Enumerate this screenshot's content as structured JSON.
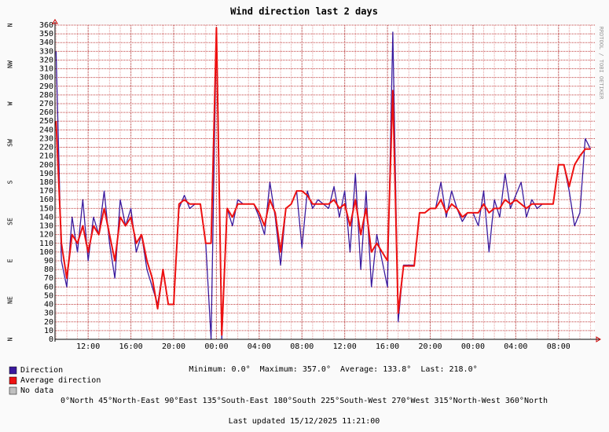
{
  "chart_data": {
    "type": "line",
    "title": "Wind direction last 2 days",
    "watermark": "RRDTOOL / TOBI OETIKER",
    "x": [
      9,
      9.5,
      10,
      10.5,
      11,
      11.5,
      12,
      12.5,
      13,
      13.5,
      14,
      14.5,
      15,
      15.5,
      16,
      16.5,
      17,
      17.5,
      18,
      18.5,
      19,
      19.5,
      20,
      20.5,
      21,
      21.5,
      22,
      22.5,
      23,
      23.5,
      24,
      24.5,
      25,
      25.5,
      26,
      26.5,
      27,
      27.5,
      28,
      28.5,
      29,
      29.5,
      30,
      30.5,
      31,
      31.5,
      32,
      32.5,
      33,
      33.5,
      34,
      34.5,
      35,
      35.5,
      36,
      36.5,
      37,
      37.5,
      38,
      38.5,
      39,
      39.5,
      40,
      40.5,
      41,
      41.5,
      42,
      42.5,
      43,
      43.5,
      44,
      44.5,
      45,
      45.5,
      46,
      46.5,
      47,
      47.5,
      48,
      48.5,
      49,
      49.5,
      50,
      50.5,
      51,
      51.5,
      52,
      52.5,
      53,
      53.5,
      54,
      54.5,
      55,
      55.5,
      56,
      56.5,
      57,
      57.5,
      58,
      58.5,
      59
    ],
    "series": [
      {
        "name": "Direction",
        "color": "#3a1a9e",
        "values": [
          330,
          90,
          60,
          140,
          100,
          160,
          90,
          140,
          120,
          170,
          110,
          70,
          160,
          130,
          150,
          100,
          120,
          80,
          60,
          40,
          80,
          40,
          40,
          150,
          165,
          150,
          155,
          155,
          110,
          0,
          357,
          0,
          150,
          130,
          160,
          155,
          155,
          155,
          140,
          120,
          180,
          140,
          85,
          150,
          155,
          170,
          105,
          170,
          150,
          160,
          155,
          150,
          175,
          140,
          170,
          100,
          190,
          80,
          170,
          60,
          120,
          90,
          60,
          352,
          20,
          85,
          85,
          85,
          145,
          145,
          150,
          150,
          180,
          140,
          170,
          150,
          135,
          145,
          145,
          130,
          170,
          100,
          160,
          140,
          190,
          150,
          165,
          180,
          140,
          160,
          150,
          155,
          155,
          155,
          200,
          200,
          170,
          130,
          145,
          230,
          218
        ]
      },
      {
        "name": "Average direction",
        "color": "#ee1111",
        "values": [
          250,
          110,
          70,
          120,
          110,
          130,
          100,
          130,
          120,
          150,
          120,
          90,
          140,
          130,
          140,
          110,
          120,
          90,
          70,
          35,
          80,
          40,
          40,
          155,
          160,
          155,
          155,
          155,
          110,
          110,
          357,
          5,
          150,
          140,
          155,
          155,
          155,
          155,
          145,
          130,
          160,
          145,
          100,
          150,
          155,
          170,
          170,
          165,
          155,
          155,
          155,
          155,
          160,
          150,
          155,
          130,
          160,
          120,
          150,
          100,
          110,
          100,
          90,
          285,
          30,
          84,
          84,
          84,
          145,
          145,
          150,
          150,
          160,
          145,
          155,
          150,
          140,
          145,
          145,
          145,
          155,
          145,
          150,
          150,
          160,
          155,
          160,
          155,
          150,
          155,
          155,
          155,
          155,
          155,
          200,
          200,
          175,
          200,
          210,
          218,
          218
        ]
      }
    ],
    "no_data": {
      "name": "No data",
      "color": "#c0c0c0"
    },
    "xlim": [
      8.9,
      59.4
    ],
    "xticks": [
      {
        "value": 12,
        "label": "12:00"
      },
      {
        "value": 16,
        "label": "16:00"
      },
      {
        "value": 20,
        "label": "20:00"
      },
      {
        "value": 24,
        "label": "00:00"
      },
      {
        "value": 28,
        "label": "04:00"
      },
      {
        "value": 32,
        "label": "08:00"
      },
      {
        "value": 36,
        "label": "12:00"
      },
      {
        "value": 40,
        "label": "16:00"
      },
      {
        "value": 44,
        "label": "20:00"
      },
      {
        "value": 48,
        "label": "00:00"
      },
      {
        "value": 52,
        "label": "04:00"
      },
      {
        "value": 56,
        "label": "08:00"
      }
    ],
    "x_grid_step": 1,
    "ylim": [
      0,
      360
    ],
    "yticks": [
      0,
      10,
      20,
      30,
      40,
      50,
      60,
      70,
      80,
      90,
      100,
      110,
      120,
      130,
      140,
      150,
      160,
      170,
      180,
      190,
      200,
      210,
      220,
      230,
      240,
      250,
      260,
      270,
      280,
      290,
      300,
      310,
      320,
      330,
      340,
      350,
      360
    ],
    "compass": [
      {
        "value": 0,
        "label": "N"
      },
      {
        "value": 45,
        "label": "NE"
      },
      {
        "value": 90,
        "label": "E"
      },
      {
        "value": 135,
        "label": "SE"
      },
      {
        "value": 180,
        "label": "S"
      },
      {
        "value": 225,
        "label": "SW"
      },
      {
        "value": 270,
        "label": "W"
      },
      {
        "value": 315,
        "label": "NW"
      },
      {
        "value": 360,
        "label": "N"
      }
    ],
    "grid": true,
    "stats": "Minimum: 0.0°  Maximum: 357.0°  Average: 133.8°  Last: 218.0°",
    "directions_note": "0°North 45°North-East 90°East 135°South-East 180°South 225°South-West 270°West 315°North-West 360°North",
    "updated": "Last updated 15/12/2025 11:21:00"
  }
}
